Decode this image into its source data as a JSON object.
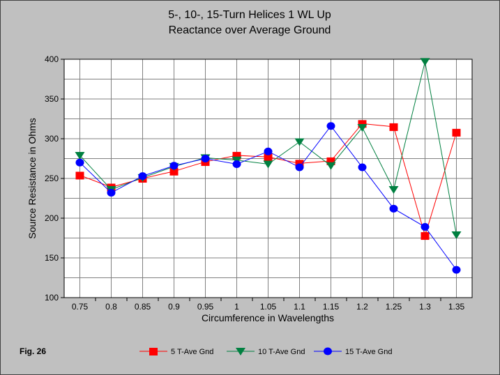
{
  "chart_data": {
    "type": "line",
    "title": "5-, 10-, 15-Turn Helices 1 WL Up",
    "subtitle": "Reactance over Average Ground",
    "xlabel": "Circumference in Wavelengths",
    "ylabel": "Source Resistance in Ohms",
    "x": [
      0.75,
      0.8,
      0.85,
      0.9,
      0.95,
      1,
      1.05,
      1.1,
      1.15,
      1.2,
      1.25,
      1.3,
      1.35
    ],
    "x_tick_labels": [
      "0.75",
      "0.8",
      "0.85",
      "0.9",
      "0.95",
      "1",
      "1.05",
      "1.1",
      "1.15",
      "1.2",
      "1.25",
      "1.3",
      "1.35"
    ],
    "ylim": [
      100,
      400
    ],
    "y_ticks": [
      100,
      150,
      200,
      250,
      300,
      350,
      400
    ],
    "y_tick_labels": [
      "100",
      "150",
      "200",
      "250",
      "300",
      "350",
      "400"
    ],
    "grid": true,
    "legend_position": "bottom",
    "series": [
      {
        "name": "5 T-Ave Gnd",
        "color": "#ff0000",
        "marker": "square",
        "values": [
          254,
          239,
          250,
          259,
          271,
          279,
          277,
          269,
          272,
          319,
          315,
          178,
          308
        ]
      },
      {
        "name": "10 T-Ave Gnd",
        "color": "#008040",
        "marker": "triangle-down",
        "values": [
          279,
          236,
          251,
          265,
          276,
          273,
          268,
          296,
          266,
          314,
          236,
          397,
          179
        ]
      },
      {
        "name": "15 T-Ave Gnd",
        "color": "#0000ff",
        "marker": "circle",
        "values": [
          270,
          232,
          253,
          266,
          275,
          268,
          284,
          264,
          316,
          264,
          212,
          189,
          135
        ]
      }
    ],
    "annotation": "Fig. 26"
  }
}
